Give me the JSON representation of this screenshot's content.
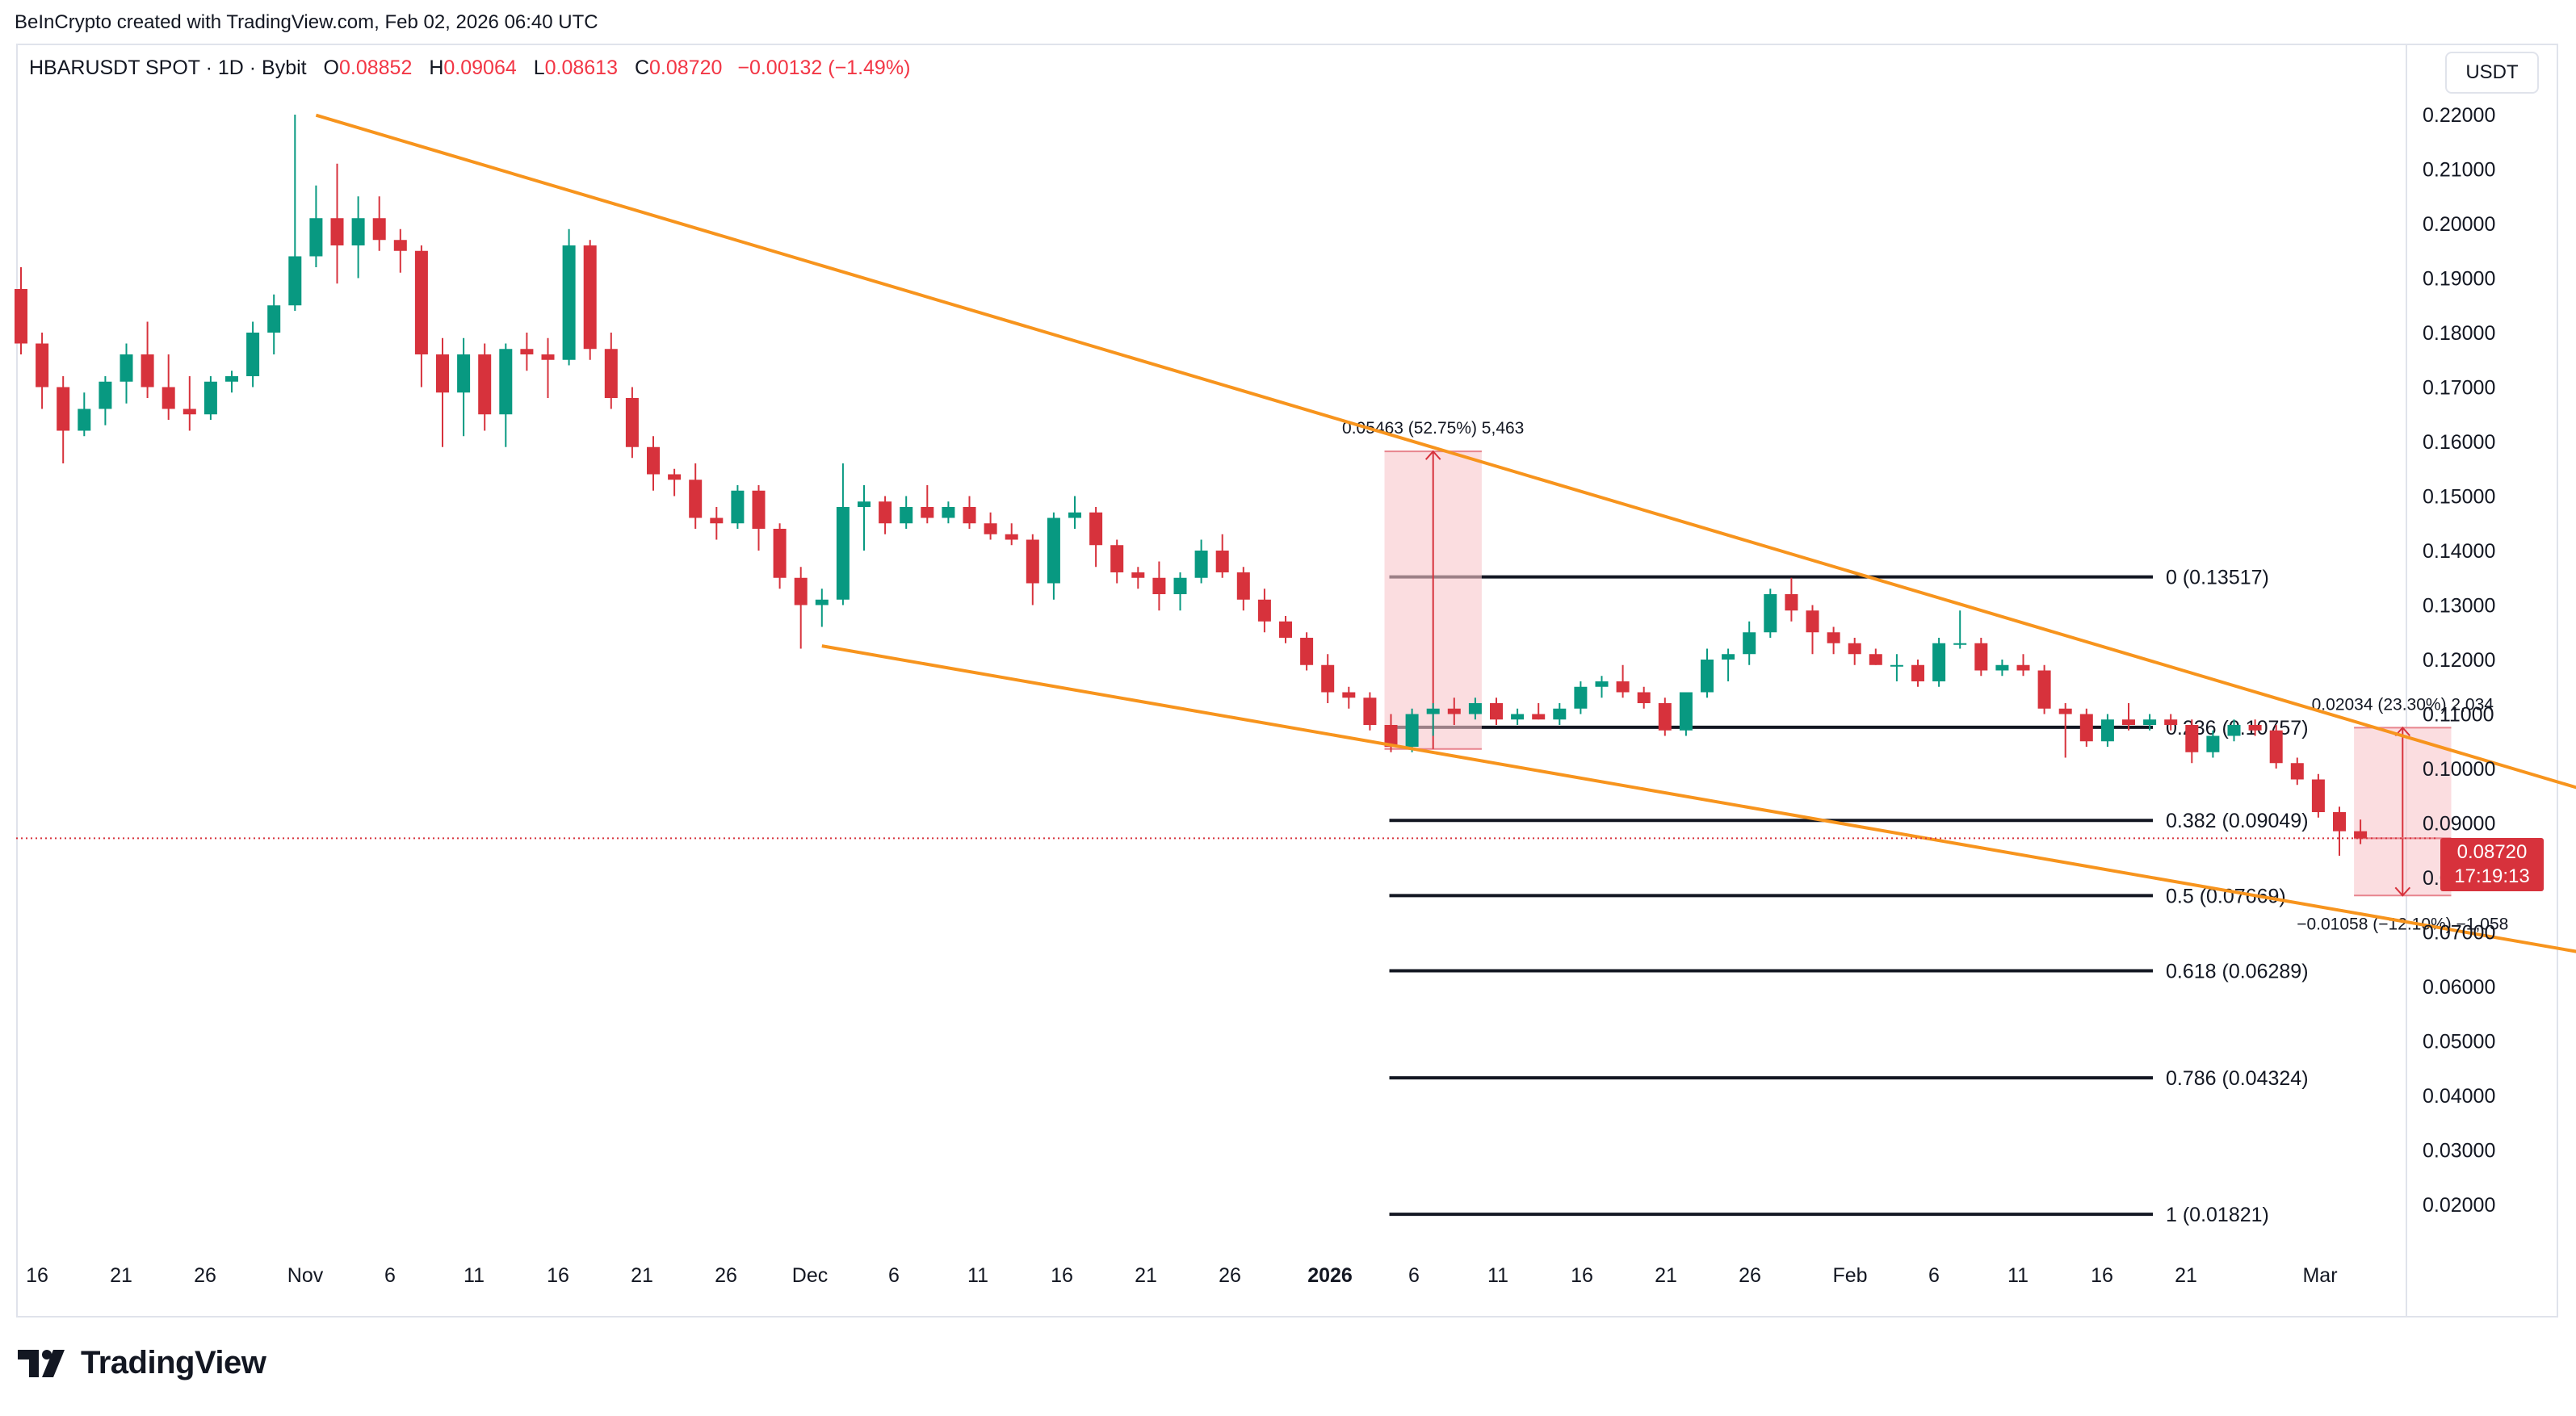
{
  "credit": "BeInCrypto created with TradingView.com, Feb 02, 2026 06:40 UTC",
  "header": {
    "symbol": "HBARUSDT SPOT · 1D · Bybit",
    "open_label": "O",
    "open": "0.08852",
    "high_label": "H",
    "high": "0.09064",
    "low_label": "L",
    "low": "0.08613",
    "close_label": "C",
    "close": "0.08720",
    "change": "−0.00132 (−1.49%)"
  },
  "currency": "USDT",
  "last_price": {
    "price": "0.08720",
    "countdown": "17:19:13",
    "value": 0.0872
  },
  "footer": {
    "brand": "TradingView"
  },
  "colors": {
    "up": "#089981",
    "down": "#d7323c",
    "channel": "#f7941d",
    "level": "#131722",
    "range_fill": "#f8c6cb"
  },
  "chart_data": {
    "type": "candlestick",
    "y_axis": {
      "min": 0.013,
      "max": 0.22,
      "ticks": [
        "0.22000",
        "0.21000",
        "0.20000",
        "0.19000",
        "0.18000",
        "0.17000",
        "0.16000",
        "0.15000",
        "0.14000",
        "0.13000",
        "0.12000",
        "0.11000",
        "0.10000",
        "0.09000",
        "0.08000",
        "0.07000",
        "0.06000",
        "0.05000",
        "0.04000",
        "0.03000",
        "0.02000"
      ]
    },
    "x_axis": {
      "labels": [
        "16",
        "21",
        "26",
        "Nov",
        "6",
        "11",
        "16",
        "21",
        "26",
        "Dec",
        "6",
        "11",
        "16",
        "21",
        "26",
        "2026",
        "6",
        "11",
        "16",
        "21",
        "26",
        "Feb",
        "6",
        "11",
        "16",
        "21",
        "Mar"
      ],
      "bold_label": "2026"
    },
    "candles": [
      {
        "o": 0.188,
        "h": 0.192,
        "l": 0.176,
        "c": 0.178
      },
      {
        "o": 0.178,
        "h": 0.18,
        "l": 0.166,
        "c": 0.17
      },
      {
        "o": 0.17,
        "h": 0.172,
        "l": 0.156,
        "c": 0.162
      },
      {
        "o": 0.162,
        "h": 0.169,
        "l": 0.161,
        "c": 0.166
      },
      {
        "o": 0.166,
        "h": 0.172,
        "l": 0.163,
        "c": 0.171
      },
      {
        "o": 0.171,
        "h": 0.178,
        "l": 0.167,
        "c": 0.176
      },
      {
        "o": 0.176,
        "h": 0.182,
        "l": 0.168,
        "c": 0.17
      },
      {
        "o": 0.17,
        "h": 0.176,
        "l": 0.164,
        "c": 0.166
      },
      {
        "o": 0.166,
        "h": 0.172,
        "l": 0.162,
        "c": 0.165
      },
      {
        "o": 0.165,
        "h": 0.172,
        "l": 0.164,
        "c": 0.171
      },
      {
        "o": 0.171,
        "h": 0.173,
        "l": 0.169,
        "c": 0.172
      },
      {
        "o": 0.172,
        "h": 0.182,
        "l": 0.17,
        "c": 0.18
      },
      {
        "o": 0.18,
        "h": 0.187,
        "l": 0.176,
        "c": 0.185
      },
      {
        "o": 0.185,
        "h": 0.22,
        "l": 0.184,
        "c": 0.194
      },
      {
        "o": 0.194,
        "h": 0.207,
        "l": 0.192,
        "c": 0.201
      },
      {
        "o": 0.201,
        "h": 0.211,
        "l": 0.189,
        "c": 0.196
      },
      {
        "o": 0.196,
        "h": 0.205,
        "l": 0.19,
        "c": 0.201
      },
      {
        "o": 0.201,
        "h": 0.205,
        "l": 0.195,
        "c": 0.197
      },
      {
        "o": 0.197,
        "h": 0.199,
        "l": 0.191,
        "c": 0.195
      },
      {
        "o": 0.195,
        "h": 0.196,
        "l": 0.17,
        "c": 0.176
      },
      {
        "o": 0.176,
        "h": 0.179,
        "l": 0.159,
        "c": 0.169
      },
      {
        "o": 0.169,
        "h": 0.179,
        "l": 0.161,
        "c": 0.176
      },
      {
        "o": 0.176,
        "h": 0.178,
        "l": 0.162,
        "c": 0.165
      },
      {
        "o": 0.165,
        "h": 0.178,
        "l": 0.159,
        "c": 0.177
      },
      {
        "o": 0.177,
        "h": 0.18,
        "l": 0.173,
        "c": 0.176
      },
      {
        "o": 0.176,
        "h": 0.179,
        "l": 0.168,
        "c": 0.175
      },
      {
        "o": 0.175,
        "h": 0.199,
        "l": 0.174,
        "c": 0.196
      },
      {
        "o": 0.196,
        "h": 0.197,
        "l": 0.175,
        "c": 0.177
      },
      {
        "o": 0.177,
        "h": 0.18,
        "l": 0.166,
        "c": 0.168
      },
      {
        "o": 0.168,
        "h": 0.17,
        "l": 0.157,
        "c": 0.159
      },
      {
        "o": 0.159,
        "h": 0.161,
        "l": 0.151,
        "c": 0.154
      },
      {
        "o": 0.154,
        "h": 0.155,
        "l": 0.15,
        "c": 0.153
      },
      {
        "o": 0.153,
        "h": 0.156,
        "l": 0.144,
        "c": 0.146
      },
      {
        "o": 0.146,
        "h": 0.148,
        "l": 0.142,
        "c": 0.145
      },
      {
        "o": 0.145,
        "h": 0.152,
        "l": 0.144,
        "c": 0.151
      },
      {
        "o": 0.151,
        "h": 0.152,
        "l": 0.14,
        "c": 0.144
      },
      {
        "o": 0.144,
        "h": 0.145,
        "l": 0.133,
        "c": 0.135
      },
      {
        "o": 0.135,
        "h": 0.137,
        "l": 0.122,
        "c": 0.13
      },
      {
        "o": 0.13,
        "h": 0.133,
        "l": 0.126,
        "c": 0.131
      },
      {
        "o": 0.131,
        "h": 0.156,
        "l": 0.13,
        "c": 0.148
      },
      {
        "o": 0.148,
        "h": 0.152,
        "l": 0.14,
        "c": 0.149
      },
      {
        "o": 0.149,
        "h": 0.15,
        "l": 0.143,
        "c": 0.145
      },
      {
        "o": 0.145,
        "h": 0.15,
        "l": 0.144,
        "c": 0.148
      },
      {
        "o": 0.148,
        "h": 0.152,
        "l": 0.145,
        "c": 0.146
      },
      {
        "o": 0.146,
        "h": 0.149,
        "l": 0.145,
        "c": 0.148
      },
      {
        "o": 0.148,
        "h": 0.15,
        "l": 0.144,
        "c": 0.145
      },
      {
        "o": 0.145,
        "h": 0.147,
        "l": 0.142,
        "c": 0.143
      },
      {
        "o": 0.143,
        "h": 0.145,
        "l": 0.141,
        "c": 0.142
      },
      {
        "o": 0.142,
        "h": 0.143,
        "l": 0.13,
        "c": 0.134
      },
      {
        "o": 0.134,
        "h": 0.147,
        "l": 0.131,
        "c": 0.146
      },
      {
        "o": 0.146,
        "h": 0.15,
        "l": 0.144,
        "c": 0.147
      },
      {
        "o": 0.147,
        "h": 0.148,
        "l": 0.137,
        "c": 0.141
      },
      {
        "o": 0.141,
        "h": 0.142,
        "l": 0.134,
        "c": 0.136
      },
      {
        "o": 0.136,
        "h": 0.137,
        "l": 0.133,
        "c": 0.135
      },
      {
        "o": 0.135,
        "h": 0.138,
        "l": 0.129,
        "c": 0.132
      },
      {
        "o": 0.132,
        "h": 0.136,
        "l": 0.129,
        "c": 0.135
      },
      {
        "o": 0.135,
        "h": 0.142,
        "l": 0.134,
        "c": 0.14
      },
      {
        "o": 0.14,
        "h": 0.143,
        "l": 0.135,
        "c": 0.136
      },
      {
        "o": 0.136,
        "h": 0.137,
        "l": 0.129,
        "c": 0.131
      },
      {
        "o": 0.131,
        "h": 0.133,
        "l": 0.125,
        "c": 0.127
      },
      {
        "o": 0.127,
        "h": 0.128,
        "l": 0.123,
        "c": 0.124
      },
      {
        "o": 0.124,
        "h": 0.125,
        "l": 0.118,
        "c": 0.119
      },
      {
        "o": 0.119,
        "h": 0.121,
        "l": 0.112,
        "c": 0.114
      },
      {
        "o": 0.114,
        "h": 0.115,
        "l": 0.111,
        "c": 0.113
      },
      {
        "o": 0.113,
        "h": 0.114,
        "l": 0.107,
        "c": 0.108
      },
      {
        "o": 0.108,
        "h": 0.11,
        "l": 0.103,
        "c": 0.104
      },
      {
        "o": 0.104,
        "h": 0.111,
        "l": 0.103,
        "c": 0.11
      },
      {
        "o": 0.11,
        "h": 0.112,
        "l": 0.106,
        "c": 0.111
      },
      {
        "o": 0.111,
        "h": 0.113,
        "l": 0.108,
        "c": 0.11
      },
      {
        "o": 0.11,
        "h": 0.113,
        "l": 0.109,
        "c": 0.112
      },
      {
        "o": 0.112,
        "h": 0.113,
        "l": 0.108,
        "c": 0.109
      },
      {
        "o": 0.109,
        "h": 0.111,
        "l": 0.108,
        "c": 0.11
      },
      {
        "o": 0.11,
        "h": 0.112,
        "l": 0.109,
        "c": 0.109
      },
      {
        "o": 0.109,
        "h": 0.112,
        "l": 0.108,
        "c": 0.111
      },
      {
        "o": 0.111,
        "h": 0.116,
        "l": 0.11,
        "c": 0.115
      },
      {
        "o": 0.115,
        "h": 0.117,
        "l": 0.113,
        "c": 0.116
      },
      {
        "o": 0.116,
        "h": 0.119,
        "l": 0.113,
        "c": 0.114
      },
      {
        "o": 0.114,
        "h": 0.115,
        "l": 0.111,
        "c": 0.112
      },
      {
        "o": 0.112,
        "h": 0.113,
        "l": 0.106,
        "c": 0.107
      },
      {
        "o": 0.107,
        "h": 0.114,
        "l": 0.106,
        "c": 0.114
      },
      {
        "o": 0.114,
        "h": 0.122,
        "l": 0.113,
        "c": 0.12
      },
      {
        "o": 0.12,
        "h": 0.122,
        "l": 0.116,
        "c": 0.121
      },
      {
        "o": 0.121,
        "h": 0.127,
        "l": 0.119,
        "c": 0.125
      },
      {
        "o": 0.125,
        "h": 0.133,
        "l": 0.124,
        "c": 0.132
      },
      {
        "o": 0.132,
        "h": 0.135,
        "l": 0.127,
        "c": 0.129
      },
      {
        "o": 0.129,
        "h": 0.13,
        "l": 0.121,
        "c": 0.125
      },
      {
        "o": 0.125,
        "h": 0.126,
        "l": 0.121,
        "c": 0.123
      },
      {
        "o": 0.123,
        "h": 0.124,
        "l": 0.119,
        "c": 0.121
      },
      {
        "o": 0.121,
        "h": 0.122,
        "l": 0.119,
        "c": 0.119
      },
      {
        "o": 0.119,
        "h": 0.121,
        "l": 0.116,
        "c": 0.119
      },
      {
        "o": 0.119,
        "h": 0.12,
        "l": 0.115,
        "c": 0.116
      },
      {
        "o": 0.116,
        "h": 0.124,
        "l": 0.115,
        "c": 0.123
      },
      {
        "o": 0.123,
        "h": 0.129,
        "l": 0.122,
        "c": 0.123
      },
      {
        "o": 0.123,
        "h": 0.124,
        "l": 0.117,
        "c": 0.118
      },
      {
        "o": 0.118,
        "h": 0.12,
        "l": 0.117,
        "c": 0.119
      },
      {
        "o": 0.119,
        "h": 0.121,
        "l": 0.117,
        "c": 0.118
      },
      {
        "o": 0.118,
        "h": 0.119,
        "l": 0.11,
        "c": 0.111
      },
      {
        "o": 0.111,
        "h": 0.112,
        "l": 0.102,
        "c": 0.11
      },
      {
        "o": 0.11,
        "h": 0.111,
        "l": 0.104,
        "c": 0.105
      },
      {
        "o": 0.105,
        "h": 0.11,
        "l": 0.104,
        "c": 0.109
      },
      {
        "o": 0.109,
        "h": 0.112,
        "l": 0.107,
        "c": 0.108
      },
      {
        "o": 0.108,
        "h": 0.11,
        "l": 0.107,
        "c": 0.109
      },
      {
        "o": 0.109,
        "h": 0.11,
        "l": 0.107,
        "c": 0.108
      },
      {
        "o": 0.108,
        "h": 0.109,
        "l": 0.101,
        "c": 0.103
      },
      {
        "o": 0.103,
        "h": 0.107,
        "l": 0.102,
        "c": 0.106
      },
      {
        "o": 0.106,
        "h": 0.109,
        "l": 0.105,
        "c": 0.108
      },
      {
        "o": 0.108,
        "h": 0.109,
        "l": 0.106,
        "c": 0.107
      },
      {
        "o": 0.107,
        "h": 0.108,
        "l": 0.1,
        "c": 0.101
      },
      {
        "o": 0.101,
        "h": 0.102,
        "l": 0.097,
        "c": 0.098
      },
      {
        "o": 0.098,
        "h": 0.099,
        "l": 0.091,
        "c": 0.092
      },
      {
        "o": 0.092,
        "h": 0.093,
        "l": 0.084,
        "c": 0.0885
      },
      {
        "o": 0.0885,
        "h": 0.09064,
        "l": 0.08613,
        "c": 0.0872
      }
    ],
    "first_candle_date": "2025-10-14",
    "channel_lines": [
      {
        "name": "upper",
        "from": {
          "date": "2025-10-28",
          "price": 0.2199
        },
        "to": {
          "date": "2026-02-24",
          "price": 0.083
        }
      },
      {
        "name": "lower",
        "from": {
          "date": "2025-11-21",
          "price": 0.1225
        },
        "to": {
          "date": "2026-02-24",
          "price": 0.0585
        }
      }
    ],
    "fib_levels": [
      {
        "label": "0 (0.13517)",
        "value": 0.13517
      },
      {
        "label": "0.236 (0.10757)",
        "value": 0.10757
      },
      {
        "label": "0.382 (0.09049)",
        "value": 0.09049
      },
      {
        "label": "0.5 (0.07669)",
        "value": 0.07669
      },
      {
        "label": "0.618 (0.06289)",
        "value": 0.06289
      },
      {
        "label": "0.786 (0.04324)",
        "value": 0.04324
      },
      {
        "label": "1 (0.01821)",
        "value": 0.01821
      }
    ],
    "fib_start_date": "2025-12-18",
    "fib_end_date": "2026-02-17",
    "measurements": [
      {
        "label": "0.05463 (52.75%) 5,463",
        "from_date": "2025-12-18",
        "to_date": "2025-12-22",
        "from": 0.1036,
        "to": 0.1582,
        "direction": "up",
        "label_pos": "above"
      },
      {
        "label": "0.02034 (23.30%) 2,034",
        "from_date": "2026-02-02",
        "to_date": "2026-02-06",
        "from": 0.0872,
        "to": 0.1075,
        "direction": "up",
        "label_pos": "above"
      },
      {
        "label": "−0.01058 (−12.10%) −1,058",
        "from_date": "2026-02-02",
        "to_date": "2026-02-06",
        "from": 0.0872,
        "to": 0.0767,
        "direction": "down",
        "label_pos": "below"
      }
    ]
  }
}
